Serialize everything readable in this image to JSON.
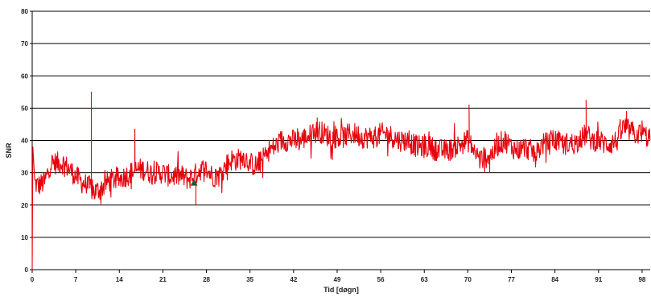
{
  "chart_data": {
    "type": "line",
    "xlabel": "Tid [døgn]",
    "ylabel": "SNR",
    "xlim": [
      0,
      99.3
    ],
    "ylim": [
      0,
      80
    ],
    "xticks": [
      0,
      7,
      14,
      21,
      28,
      35,
      42,
      49,
      56,
      63,
      70,
      77,
      84,
      91,
      98
    ],
    "yticks": [
      0,
      10,
      20,
      30,
      40,
      50,
      60,
      70,
      80
    ],
    "grid": "horizontal",
    "colors": {
      "series": "#e8000b",
      "marker": "#1e5c2e",
      "grid": "#000000"
    },
    "trend": [
      {
        "x": 0,
        "y": 0
      },
      {
        "x": 0.1,
        "y": 38
      },
      {
        "x": 0.3,
        "y": 27
      },
      {
        "x": 1,
        "y": 26
      },
      {
        "x": 2,
        "y": 27
      },
      {
        "x": 3,
        "y": 33
      },
      {
        "x": 4,
        "y": 33
      },
      {
        "x": 5,
        "y": 33
      },
      {
        "x": 6,
        "y": 31
      },
      {
        "x": 7,
        "y": 29
      },
      {
        "x": 8,
        "y": 27
      },
      {
        "x": 9,
        "y": 26
      },
      {
        "x": 10,
        "y": 24
      },
      {
        "x": 11,
        "y": 25
      },
      {
        "x": 12,
        "y": 27
      },
      {
        "x": 13,
        "y": 28
      },
      {
        "x": 14,
        "y": 28
      },
      {
        "x": 15,
        "y": 29
      },
      {
        "x": 16,
        "y": 30
      },
      {
        "x": 17,
        "y": 31
      },
      {
        "x": 18,
        "y": 31
      },
      {
        "x": 19,
        "y": 30
      },
      {
        "x": 20,
        "y": 30
      },
      {
        "x": 21,
        "y": 30
      },
      {
        "x": 22,
        "y": 29
      },
      {
        "x": 23,
        "y": 29
      },
      {
        "x": 24,
        "y": 29
      },
      {
        "x": 25,
        "y": 28
      },
      {
        "x": 26,
        "y": 29
      },
      {
        "x": 27,
        "y": 31
      },
      {
        "x": 28,
        "y": 31
      },
      {
        "x": 29,
        "y": 29
      },
      {
        "x": 30,
        "y": 29
      },
      {
        "x": 31,
        "y": 32
      },
      {
        "x": 32,
        "y": 34
      },
      {
        "x": 33,
        "y": 34
      },
      {
        "x": 34,
        "y": 35
      },
      {
        "x": 35,
        "y": 33
      },
      {
        "x": 36,
        "y": 32
      },
      {
        "x": 37,
        "y": 34
      },
      {
        "x": 38,
        "y": 37
      },
      {
        "x": 39,
        "y": 38
      },
      {
        "x": 40,
        "y": 40
      },
      {
        "x": 41,
        "y": 40
      },
      {
        "x": 42,
        "y": 40
      },
      {
        "x": 43,
        "y": 40
      },
      {
        "x": 44,
        "y": 41
      },
      {
        "x": 45,
        "y": 42
      },
      {
        "x": 46,
        "y": 43
      },
      {
        "x": 47,
        "y": 42
      },
      {
        "x": 48,
        "y": 41
      },
      {
        "x": 49,
        "y": 41
      },
      {
        "x": 50,
        "y": 41
      },
      {
        "x": 51,
        "y": 42
      },
      {
        "x": 52,
        "y": 42
      },
      {
        "x": 53,
        "y": 41
      },
      {
        "x": 54,
        "y": 41
      },
      {
        "x": 55,
        "y": 41
      },
      {
        "x": 56,
        "y": 42
      },
      {
        "x": 57,
        "y": 42
      },
      {
        "x": 58,
        "y": 41
      },
      {
        "x": 59,
        "y": 40
      },
      {
        "x": 60,
        "y": 40
      },
      {
        "x": 61,
        "y": 39
      },
      {
        "x": 62,
        "y": 38
      },
      {
        "x": 63,
        "y": 38
      },
      {
        "x": 64,
        "y": 38
      },
      {
        "x": 65,
        "y": 37
      },
      {
        "x": 66,
        "y": 37
      },
      {
        "x": 67,
        "y": 37
      },
      {
        "x": 68,
        "y": 38
      },
      {
        "x": 69,
        "y": 39
      },
      {
        "x": 70,
        "y": 40
      },
      {
        "x": 71,
        "y": 37
      },
      {
        "x": 72,
        "y": 34
      },
      {
        "x": 73,
        "y": 35
      },
      {
        "x": 74,
        "y": 36
      },
      {
        "x": 75,
        "y": 39
      },
      {
        "x": 76,
        "y": 40
      },
      {
        "x": 77,
        "y": 38
      },
      {
        "x": 78,
        "y": 37
      },
      {
        "x": 79,
        "y": 38
      },
      {
        "x": 80,
        "y": 37
      },
      {
        "x": 81,
        "y": 36
      },
      {
        "x": 82,
        "y": 39
      },
      {
        "x": 83,
        "y": 39
      },
      {
        "x": 84,
        "y": 40
      },
      {
        "x": 85,
        "y": 39
      },
      {
        "x": 86,
        "y": 39
      },
      {
        "x": 87,
        "y": 39
      },
      {
        "x": 88,
        "y": 40
      },
      {
        "x": 89,
        "y": 42
      },
      {
        "x": 90,
        "y": 40
      },
      {
        "x": 91,
        "y": 40
      },
      {
        "x": 92,
        "y": 39
      },
      {
        "x": 93,
        "y": 39
      },
      {
        "x": 94,
        "y": 40
      },
      {
        "x": 95,
        "y": 44
      },
      {
        "x": 96,
        "y": 43
      },
      {
        "x": 97,
        "y": 42
      },
      {
        "x": 98,
        "y": 42
      },
      {
        "x": 99,
        "y": 41
      },
      {
        "x": 99.3,
        "y": 41
      }
    ],
    "spikes": [
      {
        "x": 9.5,
        "y": 55
      },
      {
        "x": 16.5,
        "y": 43.5
      },
      {
        "x": 26.3,
        "y": 20
      },
      {
        "x": 45.8,
        "y": 47
      },
      {
        "x": 70.2,
        "y": 51
      },
      {
        "x": 73.5,
        "y": 30
      },
      {
        "x": 89,
        "y": 52.5
      },
      {
        "x": 95.5,
        "y": 49
      }
    ],
    "marker": {
      "x": 26,
      "y": 27,
      "shape": "triangle"
    }
  }
}
